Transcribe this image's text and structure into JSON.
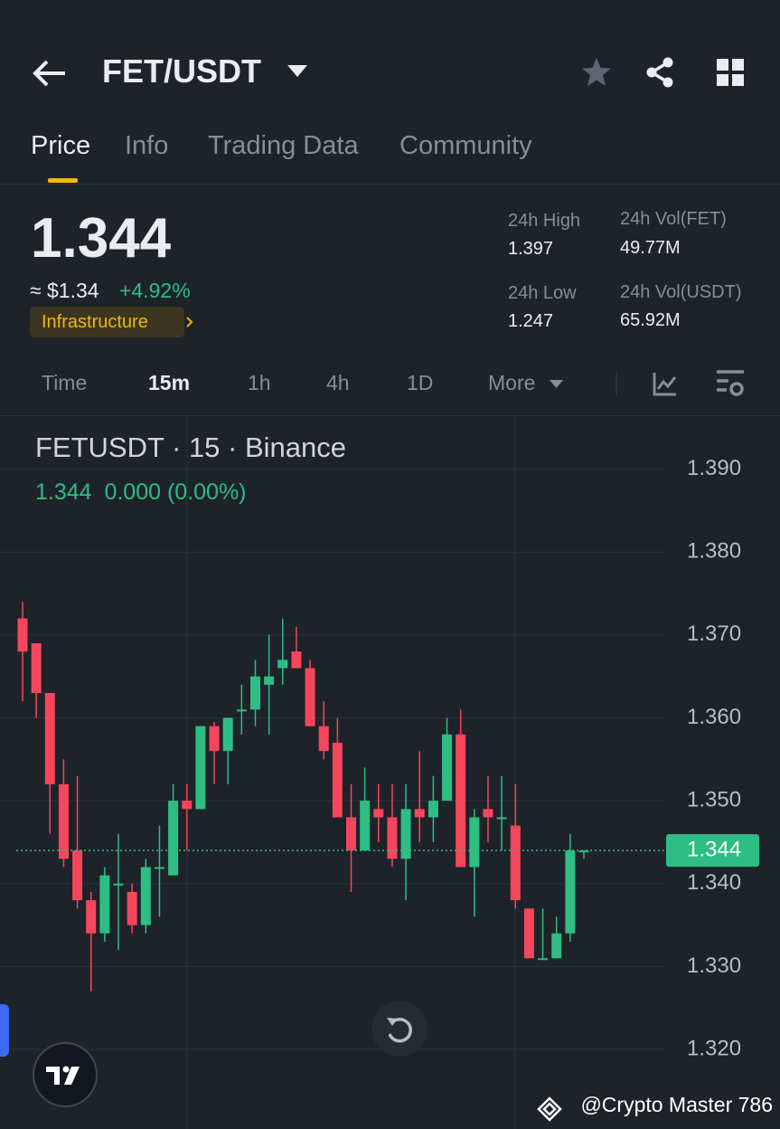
{
  "header": {
    "pair": "FET/USDT"
  },
  "tabs": [
    "Price",
    "Info",
    "Trading Data",
    "Community"
  ],
  "price": {
    "last": "1.344",
    "usd": "≈ $1.34",
    "change": "+4.92%",
    "tag": "Infrastructure"
  },
  "stats": [
    {
      "label": "24h High",
      "value": "1.397"
    },
    {
      "label": "24h Vol(FET)",
      "value": "49.77M"
    },
    {
      "label": "24h Low",
      "value": "1.247"
    },
    {
      "label": "24h Vol(USDT)",
      "value": "65.92M"
    }
  ],
  "intervals": [
    "Time",
    "15m",
    "1h",
    "4h",
    "1D",
    "More"
  ],
  "chart_data": {
    "type": "candlestick",
    "title": "FETUSDT · 15 · Binance",
    "subtitle": "1.344  0.000 (0.00%)",
    "up_color": "#2ebd85",
    "down_color": "#f6465d",
    "ylim": [
      1.3104,
      1.3964
    ],
    "yticks": [
      {
        "value": 1.32,
        "label": "1.320"
      },
      {
        "value": 1.33,
        "label": "1.330"
      },
      {
        "value": 1.34,
        "label": "1.340"
      },
      {
        "value": 1.35,
        "label": "1.350"
      },
      {
        "value": 1.36,
        "label": "1.360"
      },
      {
        "value": 1.37,
        "label": "1.370"
      },
      {
        "value": 1.38,
        "label": "1.380"
      },
      {
        "value": 1.39,
        "label": "1.390"
      }
    ],
    "grid": true,
    "last_price": {
      "value": 1.344,
      "label": "1.344"
    },
    "open": [
      1.372,
      1.369,
      1.363,
      1.352,
      1.344,
      1.338,
      1.334,
      1.34,
      1.339,
      1.335,
      1.342,
      1.341,
      1.35,
      1.349,
      1.359,
      1.356,
      1.361,
      1.361,
      1.364,
      1.366,
      1.368,
      1.366,
      1.359,
      1.357,
      1.348,
      1.344,
      1.349,
      1.348,
      1.343,
      1.349,
      1.348,
      1.35,
      1.358,
      1.342,
      1.349,
      1.348,
      1.347,
      1.337,
      1.331,
      1.331,
      1.334,
      1.344
    ],
    "high": [
      1.374,
      1.369,
      1.363,
      1.355,
      1.353,
      1.339,
      1.342,
      1.346,
      1.34,
      1.343,
      1.347,
      1.352,
      1.352,
      1.359,
      1.3595,
      1.36,
      1.364,
      1.367,
      1.37,
      1.372,
      1.371,
      1.367,
      1.362,
      1.36,
      1.352,
      1.354,
      1.352,
      1.352,
      1.352,
      1.356,
      1.353,
      1.36,
      1.361,
      1.349,
      1.353,
      1.353,
      1.352,
      1.337,
      1.337,
      1.336,
      1.346,
      1.344
    ],
    "low": [
      1.362,
      1.36,
      1.346,
      1.342,
      1.337,
      1.327,
      1.333,
      1.332,
      1.334,
      1.334,
      1.336,
      1.341,
      1.344,
      1.349,
      1.352,
      1.352,
      1.358,
      1.359,
      1.358,
      1.364,
      1.366,
      1.359,
      1.355,
      1.348,
      1.339,
      1.344,
      1.345,
      1.342,
      1.338,
      1.345,
      1.345,
      1.35,
      1.342,
      1.336,
      1.345,
      1.344,
      1.337,
      1.331,
      1.331,
      1.331,
      1.333,
      1.343
    ],
    "close": [
      1.368,
      1.363,
      1.352,
      1.343,
      1.338,
      1.334,
      1.341,
      1.34,
      1.335,
      1.342,
      1.342,
      1.35,
      1.349,
      1.359,
      1.356,
      1.36,
      1.361,
      1.365,
      1.365,
      1.367,
      1.366,
      1.359,
      1.356,
      1.348,
      1.344,
      1.35,
      1.348,
      1.343,
      1.349,
      1.348,
      1.35,
      1.358,
      1.342,
      1.348,
      1.348,
      1.348,
      1.338,
      1.331,
      1.331,
      1.334,
      1.344,
      1.344
    ]
  },
  "watermark": "@Crypto Master 786"
}
